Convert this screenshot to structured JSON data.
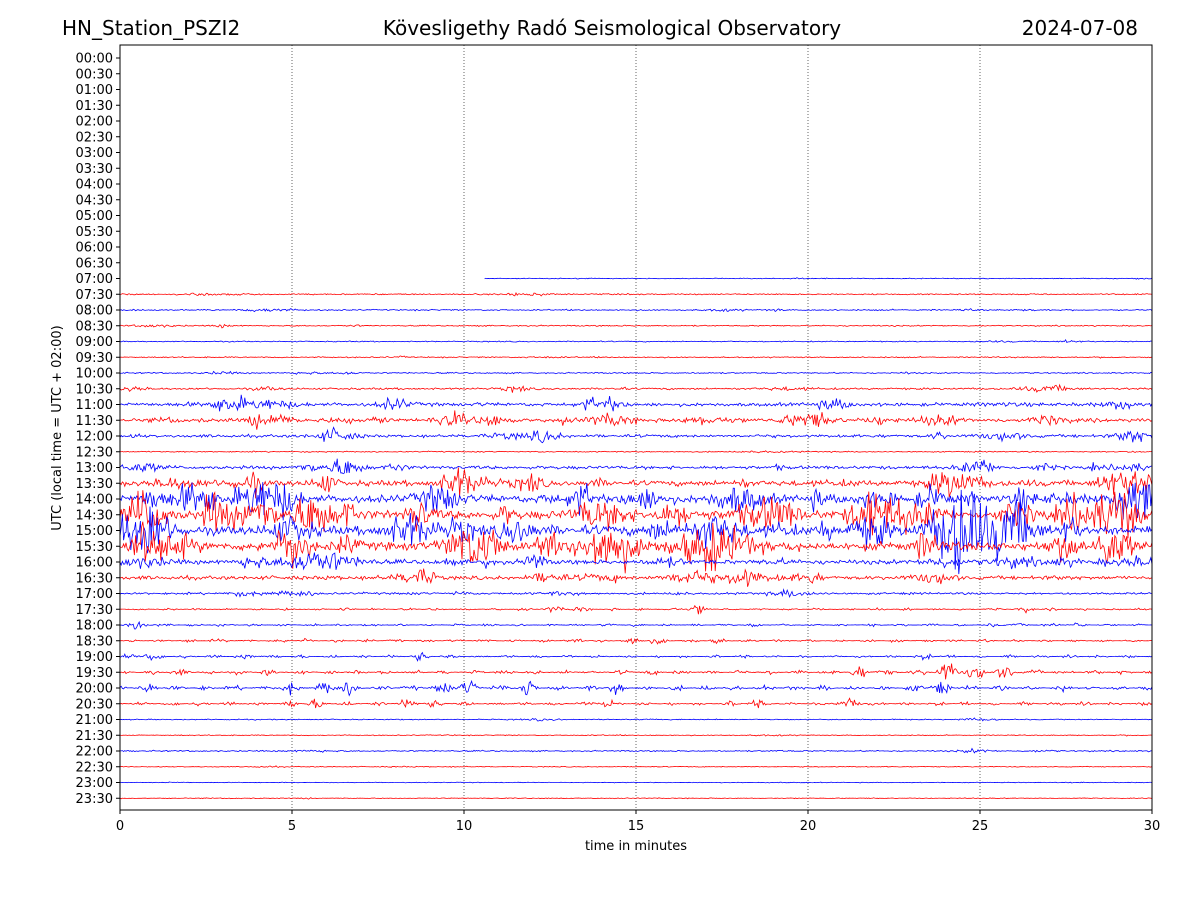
{
  "header": {
    "station": "HN_Station_PSZI2",
    "title": "Kövesligethy Radó Seismological Observatory",
    "date": "2024-07-08"
  },
  "chart_data": {
    "type": "line",
    "title": "Kövesligethy Radó Seismological Observatory",
    "xlabel": "time in minutes",
    "ylabel": "UTC (local time = UTC + 02:00)",
    "xlim": [
      0,
      30
    ],
    "x_ticks": [
      "0",
      "5",
      "10",
      "15",
      "20",
      "25",
      "30"
    ],
    "x_tick_values": [
      0,
      5,
      10,
      15,
      20,
      25,
      30
    ],
    "vertical_gridlines_at": [
      5,
      10,
      15,
      20,
      25
    ],
    "y_ticks": [
      "00:00",
      "00:30",
      "01:00",
      "01:30",
      "02:00",
      "02:30",
      "03:00",
      "03:30",
      "04:00",
      "04:30",
      "05:00",
      "05:30",
      "06:00",
      "06:30",
      "07:00",
      "07:30",
      "08:00",
      "08:30",
      "09:00",
      "09:30",
      "10:00",
      "10:30",
      "11:00",
      "11:30",
      "12:00",
      "12:30",
      "13:00",
      "13:30",
      "14:00",
      "14:30",
      "15:00",
      "15:30",
      "16:00",
      "16:30",
      "17:00",
      "17:30",
      "18:00",
      "18:30",
      "19:00",
      "19:30",
      "20:00",
      "20:30",
      "21:00",
      "21:30",
      "22:00",
      "22:30",
      "23:00",
      "23:30"
    ],
    "trace_colors": [
      "#0000ff",
      "#ff0000"
    ],
    "first_trace": "07:00",
    "first_trace_start_minute": 10.6,
    "trace_activity": [
      0,
      0,
      0,
      0,
      0,
      0,
      0,
      0,
      0,
      0,
      0,
      0,
      0,
      0,
      0.15,
      0.4,
      0.4,
      0.35,
      0.3,
      0.35,
      0.4,
      0.7,
      1.5,
      1.6,
      1.2,
      0.3,
      1.4,
      2.5,
      3.5,
      4.0,
      4.0,
      3.8,
      2.0,
      1.6,
      0.8,
      0.5,
      0.5,
      0.6,
      0.6,
      1.0,
      1.2,
      0.8,
      0.25,
      0.2,
      0.4,
      0.15,
      0.1,
      0.15
    ],
    "grid": "vertical dotted"
  }
}
